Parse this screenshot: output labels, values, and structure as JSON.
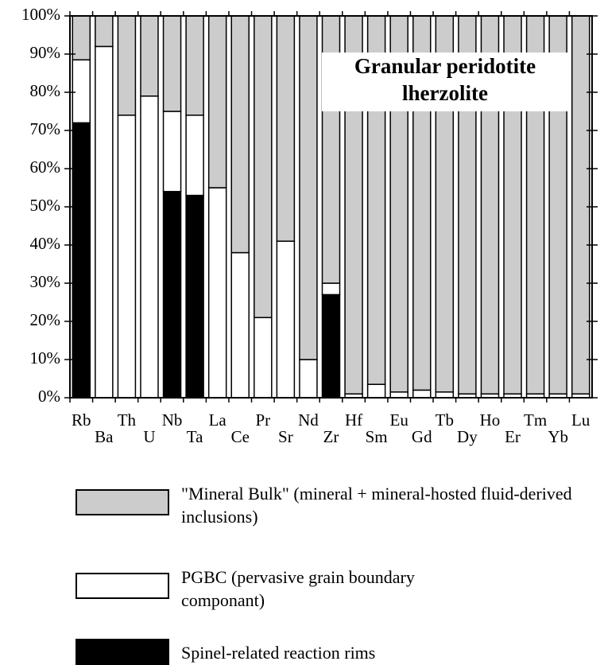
{
  "chart_data": {
    "type": "stacked_bar",
    "annotation": [
      "Granular peridotite",
      "lherzolite"
    ],
    "categories": [
      "Rb",
      "Ba",
      "Th",
      "U",
      "Nb",
      "Ta",
      "La",
      "Ce",
      "Pr",
      "Sr",
      "Nd",
      "Zr",
      "Hf",
      "Sm",
      "Eu",
      "Gd",
      "Tb",
      "Dy",
      "Ho",
      "Er",
      "Tm",
      "Yb",
      "Lu"
    ],
    "series": [
      {
        "name": "Spinel-related reaction rims",
        "color": "#000000",
        "values": [
          72,
          0,
          0,
          0,
          54,
          53,
          0,
          0,
          0,
          0,
          0,
          27,
          0,
          0,
          0,
          0,
          0,
          0,
          0,
          0,
          0,
          0,
          0
        ]
      },
      {
        "name": "PGBC (pervasive grain boundary componant)",
        "color": "#ffffff",
        "values": [
          16.5,
          92,
          74,
          79,
          21,
          21,
          55,
          38,
          21,
          41,
          10,
          3,
          1,
          3.5,
          1.5,
          2,
          1.5,
          1,
          1,
          1,
          1,
          1,
          1
        ]
      },
      {
        "name": "\"Mineral Bulk\" (mineral + mineral-hosted fluid-derived inclusions)",
        "color": "#cccccc",
        "values": [
          11.5,
          8,
          26,
          21,
          25,
          26,
          45,
          62,
          79,
          59,
          90,
          70,
          99,
          96.5,
          98.5,
          98,
          98.5,
          99,
          99,
          99,
          99,
          99,
          99
        ]
      }
    ],
    "ylim": [
      0,
      100
    ],
    "yticks": [
      {
        "value": 0,
        "label": "0%"
      },
      {
        "value": 10,
        "label": "10%"
      },
      {
        "value": 20,
        "label": "20%"
      },
      {
        "value": 30,
        "label": "30%"
      },
      {
        "value": 40,
        "label": "40%"
      },
      {
        "value": 50,
        "label": "50%"
      },
      {
        "value": 60,
        "label": "60%"
      },
      {
        "value": 70,
        "label": "70%"
      },
      {
        "value": 80,
        "label": "80%"
      },
      {
        "value": 90,
        "label": "90%"
      },
      {
        "value": 100,
        "label": "100%"
      }
    ],
    "grid": false
  }
}
